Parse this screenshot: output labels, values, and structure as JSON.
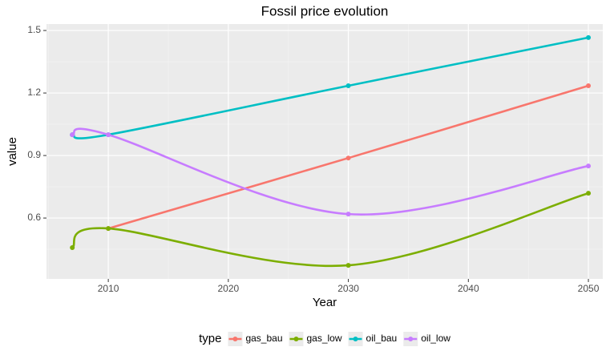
{
  "chart_data": {
    "type": "line",
    "title": "Fossil price evolution",
    "x_label": "Year",
    "y_label": "value",
    "legend_title": "type",
    "x": [
      2007,
      2010,
      2030,
      2050
    ],
    "series": [
      {
        "name": "gas_bau",
        "color": "#F8766D",
        "values": [
          null,
          0.55,
          0.888,
          1.235
        ]
      },
      {
        "name": "gas_low",
        "color": "#7CAE00",
        "values": [
          0.458,
          0.55,
          0.373,
          0.719
        ]
      },
      {
        "name": "oil_bau",
        "color": "#00BFC4",
        "values": [
          1.0,
          1.0,
          1.235,
          1.466
        ]
      },
      {
        "name": "oil_low",
        "color": "#C77CFF",
        "values": [
          1.0,
          1.0,
          0.619,
          0.85
        ]
      }
    ],
    "xlim": [
      2004.85,
      2051.2
    ],
    "xticks": [
      2010,
      2020,
      2030,
      2040,
      2050
    ],
    "ylim": [
      0.308,
      1.531
    ],
    "yticks": [
      0.6,
      0.9,
      1.2,
      1.5
    ],
    "grid": true,
    "legend_position": "bottom"
  }
}
